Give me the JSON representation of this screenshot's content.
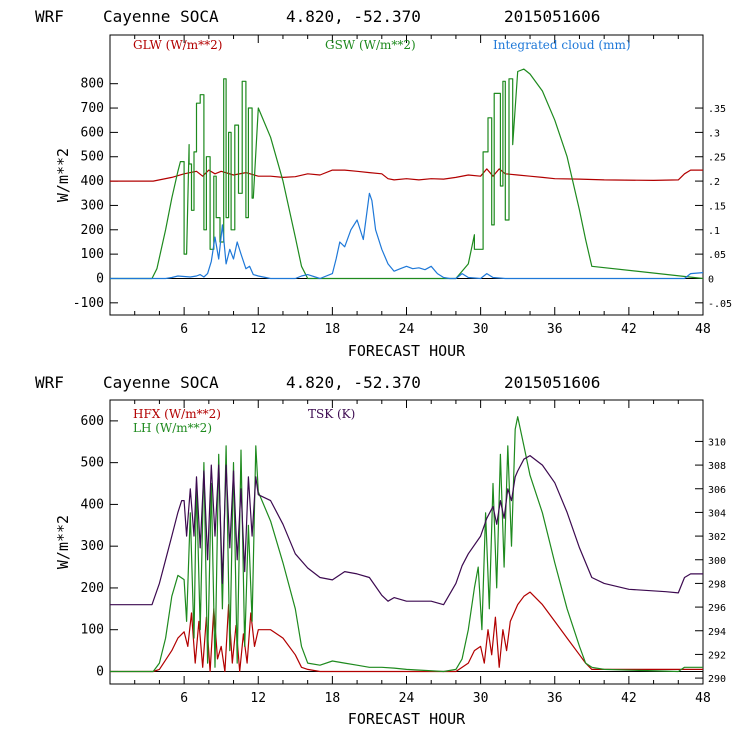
{
  "colors": {
    "red": "#b20000",
    "green": "#1e8a1e",
    "blue": "#1e78d8",
    "purple": "#3c0a50",
    "axis": "#000000"
  },
  "chart_data": [
    {
      "type": "line",
      "header": {
        "model": "WRF",
        "site": "Cayenne SOCA",
        "coords": "4.820, -52.370",
        "run": "2015051606"
      },
      "xlabel": "FORECAST HOUR",
      "ylabel": "W/m**2",
      "xlim": [
        0,
        48
      ],
      "ylim": [
        -150,
        1000
      ],
      "x_ticks": [
        "6",
        "12",
        "18",
        "24",
        "30",
        "36",
        "42",
        "48"
      ],
      "y_ticks": [
        "-100",
        "0",
        "100",
        "200",
        "300",
        "400",
        "500",
        "600",
        "700",
        "800"
      ],
      "y2_ticks": [
        "-.05",
        "0",
        ".05",
        ".1",
        ".15",
        ".2",
        ".25",
        ".3",
        ".35"
      ],
      "y2lim": [
        -0.075,
        0.5
      ],
      "legend": [
        "GLW (W/m**2)",
        "GSW (W/m**2)",
        "Integrated cloud (mm)"
      ],
      "series": [
        {
          "name": "GLW (W/m**2)",
          "color": "#b20000",
          "axis": "left",
          "x": [
            0,
            3.5,
            5,
            6,
            7,
            7.5,
            8,
            8.5,
            9,
            10,
            11,
            12,
            13,
            14,
            15,
            16,
            17,
            18,
            19,
            20,
            21,
            22,
            22.5,
            23,
            24,
            25,
            26,
            27,
            28,
            29,
            30,
            30.5,
            31,
            31.5,
            32,
            33,
            34,
            35,
            36,
            38,
            40,
            44,
            46,
            46.5,
            47,
            48
          ],
          "values": [
            400,
            400,
            415,
            430,
            440,
            420,
            445,
            430,
            440,
            425,
            435,
            420,
            420,
            415,
            418,
            430,
            425,
            445,
            445,
            440,
            435,
            430,
            410,
            405,
            410,
            405,
            410,
            408,
            415,
            425,
            420,
            450,
            420,
            450,
            430,
            425,
            420,
            415,
            410,
            408,
            405,
            403,
            405,
            430,
            445,
            445
          ]
        },
        {
          "name": "GSW (W/m**2)",
          "color": "#1e8a1e",
          "axis": "left",
          "x": [
            0,
            3.4,
            3.8,
            4.5,
            5,
            5.5,
            5.7,
            6,
            6,
            6.2,
            6.4,
            6.4,
            6.6,
            6.6,
            6.8,
            6.8,
            7,
            7,
            7.3,
            7.3,
            7.6,
            7.6,
            7.8,
            7.8,
            8.1,
            8.1,
            8.4,
            8.4,
            8.6,
            8.6,
            8.9,
            8.9,
            9.2,
            9.2,
            9.4,
            9.4,
            9.6,
            9.6,
            9.8,
            9.8,
            10.1,
            10.1,
            10.4,
            10.4,
            10.7,
            10.7,
            11,
            11,
            11.2,
            11.2,
            11.5,
            11.5,
            11.6,
            12,
            13,
            14,
            15,
            15.5,
            16,
            28,
            29,
            29.5,
            29.5,
            30.2,
            30.2,
            30.6,
            30.6,
            30.9,
            30.9,
            31.1,
            31.1,
            31.6,
            31.6,
            31.8,
            31.8,
            32,
            32,
            32.3,
            32.3,
            32.6,
            32.6,
            33,
            33.5,
            34,
            35,
            36,
            37,
            38,
            38.5,
            39,
            48
          ],
          "values": [
            0,
            0,
            40,
            200,
            330,
            440,
            480,
            480,
            100,
            100,
            550,
            470,
            470,
            280,
            280,
            520,
            520,
            720,
            720,
            755,
            755,
            200,
            200,
            500,
            500,
            120,
            120,
            420,
            420,
            250,
            250,
            150,
            150,
            820,
            820,
            250,
            250,
            600,
            600,
            200,
            200,
            630,
            630,
            350,
            350,
            810,
            810,
            250,
            250,
            700,
            700,
            330,
            330,
            700,
            580,
            400,
            170,
            50,
            0,
            0,
            60,
            180,
            120,
            120,
            520,
            520,
            660,
            660,
            220,
            220,
            760,
            760,
            380,
            380,
            810,
            810,
            240,
            240,
            820,
            820,
            550,
            850,
            860,
            840,
            770,
            650,
            500,
            280,
            160,
            50,
            0
          ]
        },
        {
          "name": "Integrated cloud (mm)",
          "color": "#1e78d8",
          "axis": "right",
          "x": [
            0,
            4.5,
            5,
            5.5,
            6,
            6.5,
            7,
            7.3,
            7.6,
            7.9,
            8.2,
            8.5,
            8.8,
            9.1,
            9.4,
            9.7,
            10,
            10.3,
            10.6,
            11,
            11.3,
            11.6,
            12,
            13,
            15,
            15.5,
            16,
            17,
            18,
            18.3,
            18.6,
            19,
            19.5,
            20,
            20.5,
            21,
            21.2,
            21.5,
            22,
            22.5,
            23,
            23.5,
            24,
            24.5,
            25,
            25.5,
            26,
            26.5,
            27,
            27.5,
            28,
            28.5,
            29,
            30,
            30.5,
            31,
            32,
            46.5,
            47,
            48
          ],
          "values": [
            0,
            0,
            0.002,
            0.005,
            0.004,
            0.003,
            0.005,
            0.008,
            0.003,
            0.01,
            0.035,
            0.085,
            0.04,
            0.11,
            0.03,
            0.06,
            0.04,
            0.075,
            0.05,
            0.02,
            0.025,
            0.008,
            0.005,
            0,
            0,
            0.005,
            0.008,
            0,
            0.01,
            0.04,
            0.075,
            0.065,
            0.1,
            0.12,
            0.08,
            0.175,
            0.16,
            0.1,
            0.06,
            0.03,
            0.015,
            0.02,
            0.025,
            0.02,
            0.022,
            0.018,
            0.025,
            0.01,
            0.002,
            0,
            0,
            0.01,
            0.002,
            0,
            0.01,
            0.002,
            0,
            0,
            0.01,
            0.012
          ]
        }
      ]
    },
    {
      "type": "line",
      "header": {
        "model": "WRF",
        "site": "Cayenne SOCA",
        "coords": "4.820, -52.370",
        "run": "2015051606"
      },
      "xlabel": "FORECAST HOUR",
      "ylabel": "W/m**2",
      "xlim": [
        0,
        48
      ],
      "ylim": [
        -30,
        650
      ],
      "x_ticks": [
        "6",
        "12",
        "18",
        "24",
        "30",
        "36",
        "42",
        "48"
      ],
      "y_ticks": [
        "0",
        "100",
        "200",
        "300",
        "400",
        "500",
        "600"
      ],
      "y2_ticks": [
        "290",
        "292",
        "294",
        "296",
        "298",
        "300",
        "302",
        "304",
        "306",
        "308",
        "310"
      ],
      "y2lim": [
        289.5,
        313.5
      ],
      "legend": [
        "HFX (W/m**2)",
        "LH (W/m**2)",
        "TSK (K)"
      ],
      "series": [
        {
          "name": "HFX (W/m**2)",
          "color": "#b20000",
          "axis": "left",
          "x": [
            0,
            3.5,
            4,
            5,
            5.5,
            6,
            6.3,
            6.6,
            6.9,
            7.2,
            7.5,
            7.8,
            8.1,
            8.4,
            8.7,
            9,
            9.3,
            9.6,
            9.9,
            10.2,
            10.5,
            10.8,
            11.1,
            11.4,
            11.7,
            12,
            13,
            14,
            15,
            15.5,
            16,
            17,
            28,
            29,
            29.5,
            30,
            30.3,
            30.6,
            30.9,
            31.2,
            31.5,
            31.8,
            32.1,
            32.4,
            32.7,
            33,
            33.5,
            34,
            35,
            36,
            37,
            38,
            38.5,
            39,
            48
          ],
          "values": [
            0,
            0,
            5,
            50,
            80,
            95,
            60,
            140,
            20,
            120,
            10,
            130,
            0,
            150,
            30,
            60,
            0,
            160,
            20,
            110,
            0,
            90,
            20,
            140,
            60,
            100,
            100,
            80,
            40,
            10,
            5,
            0,
            0,
            20,
            50,
            60,
            20,
            100,
            40,
            130,
            10,
            100,
            50,
            120,
            140,
            160,
            180,
            190,
            160,
            120,
            80,
            40,
            20,
            5,
            5
          ]
        },
        {
          "name": "LH (W/m**2)",
          "color": "#1e8a1e",
          "axis": "left",
          "x": [
            0,
            3.5,
            4,
            4.5,
            5,
            5.5,
            6,
            6.2,
            6.5,
            6.8,
            7,
            7.3,
            7.6,
            7.9,
            8.2,
            8.5,
            8.8,
            9.1,
            9.4,
            9.7,
            10,
            10.3,
            10.6,
            10.9,
            11.2,
            11.5,
            11.8,
            12,
            13,
            14,
            15,
            15.5,
            16,
            17,
            18,
            19,
            20,
            21,
            22,
            23,
            24,
            27,
            28,
            28.5,
            29,
            29.5,
            29.8,
            30.1,
            30.4,
            30.7,
            31,
            31.3,
            31.6,
            31.9,
            32.2,
            32.5,
            32.8,
            33,
            33.5,
            34,
            35,
            36,
            37,
            38,
            38.5,
            39,
            40,
            46,
            46.5,
            47,
            48
          ],
          "values": [
            0,
            0,
            20,
            80,
            180,
            230,
            220,
            120,
            380,
            80,
            450,
            100,
            500,
            20,
            450,
            10,
            520,
            150,
            540,
            50,
            500,
            20,
            530,
            60,
            350,
            120,
            540,
            430,
            360,
            260,
            150,
            60,
            20,
            15,
            25,
            20,
            15,
            10,
            10,
            8,
            5,
            0,
            5,
            30,
            100,
            200,
            250,
            100,
            380,
            150,
            450,
            200,
            520,
            250,
            540,
            300,
            580,
            610,
            540,
            470,
            380,
            260,
            150,
            60,
            20,
            10,
            5,
            0,
            10,
            10,
            10
          ]
        },
        {
          "name": "TSK (K)",
          "color": "#3c0a50",
          "axis": "right",
          "x": [
            0,
            3.4,
            3.5,
            4,
            4.5,
            5,
            5.5,
            5.8,
            6,
            6.2,
            6.5,
            6.8,
            7,
            7.3,
            7.6,
            7.9,
            8.2,
            8.5,
            8.8,
            9.1,
            9.4,
            9.7,
            10,
            10.3,
            10.6,
            10.9,
            11.2,
            11.5,
            11.8,
            12,
            13,
            14,
            15,
            16,
            17,
            18,
            19,
            20,
            21,
            22,
            22.5,
            23,
            24,
            26,
            27,
            28,
            28.5,
            29,
            30,
            30.5,
            31,
            31.3,
            31.6,
            31.9,
            32.2,
            32.5,
            32.8,
            33,
            33.5,
            34,
            35,
            36,
            37,
            38,
            39,
            40,
            42,
            45,
            46,
            46.5,
            47,
            48
          ],
          "values": [
            296.2,
            296.2,
            296.5,
            298,
            300,
            302,
            304,
            305,
            305,
            302,
            306,
            302,
            307,
            301,
            307.5,
            300,
            308,
            302,
            308,
            298,
            308,
            301,
            307.5,
            300,
            306,
            299,
            307,
            302,
            307,
            305.5,
            305,
            303,
            300.5,
            299.3,
            298.5,
            298.3,
            299,
            298.8,
            298.5,
            297,
            296.5,
            296.8,
            296.5,
            296.5,
            296.2,
            298,
            299.5,
            300.5,
            302,
            303.5,
            304.5,
            303,
            305,
            303.5,
            306,
            305,
            307,
            307.5,
            308.5,
            308.8,
            308,
            306.5,
            304,
            301,
            298.5,
            298,
            297.5,
            297.3,
            297.2,
            298.5,
            298.8,
            298.8
          ]
        }
      ]
    }
  ]
}
